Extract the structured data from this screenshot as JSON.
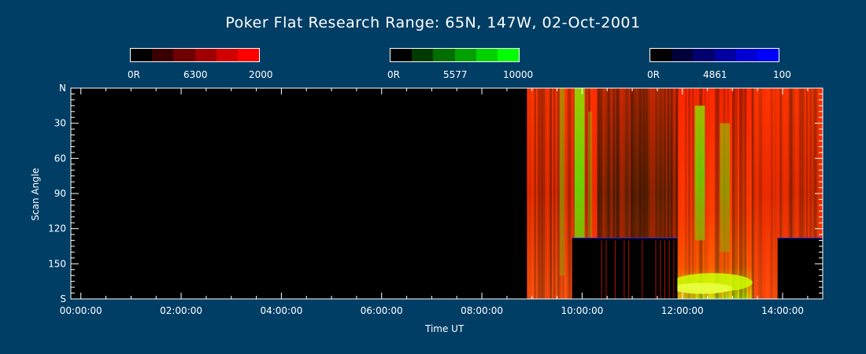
{
  "title": "Poker Flat Research Range: 65N, 147W, 02-Oct-2001",
  "colorbars": [
    {
      "name": "6300",
      "min_label": "0R",
      "mid_label": "6300",
      "max_label": "2000",
      "colors": [
        "#000000",
        "#3a0000",
        "#6e0000",
        "#a00000",
        "#d20000",
        "#ff0000"
      ]
    },
    {
      "name": "5577",
      "min_label": "0R",
      "mid_label": "5577",
      "max_label": "10000",
      "colors": [
        "#000000",
        "#003a00",
        "#006e00",
        "#00a000",
        "#00d200",
        "#00ff00"
      ]
    },
    {
      "name": "4861",
      "min_label": "0R",
      "mid_label": "4861",
      "max_label": "100",
      "colors": [
        "#000000",
        "#00003a",
        "#00006e",
        "#0000a0",
        "#0000d2",
        "#0000ff"
      ]
    }
  ],
  "chart_data": {
    "type": "heatmap",
    "title": "Poker Flat Research Range: 65N, 147W, 02-Oct-2001",
    "xlabel": "Time UT",
    "ylabel": "Scan Angle",
    "x_ticks": [
      "00:00:00",
      "02:00:00",
      "04:00:00",
      "06:00:00",
      "08:00:00",
      "10:00:00",
      "12:00:00",
      "14:00:00"
    ],
    "y_ticks": [
      "N",
      "30",
      "60",
      "90",
      "120",
      "150",
      "S"
    ],
    "y_values": [
      0,
      30,
      60,
      90,
      120,
      150,
      180
    ],
    "xlim_hours": [
      -0.2,
      14.8
    ],
    "ylim_deg": [
      0,
      180
    ],
    "data_start_hours": 8.9,
    "segments": [
      {
        "start": 8.9,
        "end": 9.6,
        "dominant": "red"
      },
      {
        "start": 9.6,
        "end": 10.3,
        "dominant": "green-red"
      },
      {
        "start": 10.3,
        "end": 11.9,
        "dominant": "dark-red"
      },
      {
        "start": 11.9,
        "end": 13.4,
        "dominant": "red-green"
      },
      {
        "start": 13.4,
        "end": 14.8,
        "dominant": "red"
      }
    ],
    "masked_blocks": [
      {
        "start": 9.8,
        "end": 11.9,
        "angle_from": 128,
        "angle_to": 180
      },
      {
        "start": 13.9,
        "end": 14.8,
        "angle_from": 128,
        "angle_to": 180
      }
    ]
  }
}
